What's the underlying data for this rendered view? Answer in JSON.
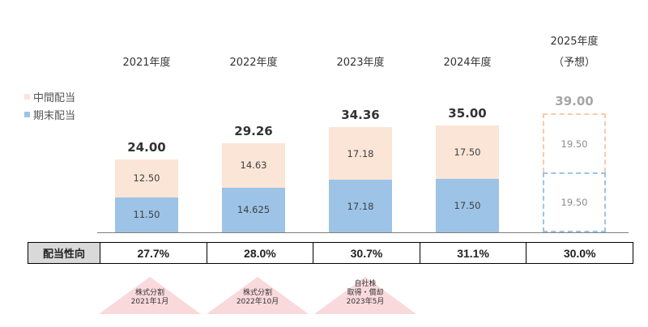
{
  "chart_data": {
    "type": "bar",
    "stacked": true,
    "categories": [
      "2021年度",
      "2022年度",
      "2023年度",
      "2024年度",
      "2025年度"
    ],
    "category_notes": [
      "",
      "",
      "",
      "",
      "（予想）"
    ],
    "series": [
      {
        "name": "期末配当",
        "values": [
          11.5,
          14.625,
          17.18,
          17.5,
          19.5
        ],
        "labels": [
          "11.50",
          "14.625",
          "17.18",
          "17.50",
          "19.50"
        ],
        "color": "#9dc3e6"
      },
      {
        "name": "中間配当",
        "values": [
          12.5,
          14.63,
          17.18,
          17.5,
          19.5
        ],
        "labels": [
          "12.50",
          "14.63",
          "17.18",
          "17.50",
          "19.50"
        ],
        "color": "#fbe5d6"
      }
    ],
    "totals": [
      "24.00",
      "29.26",
      "34.36",
      "35.00",
      "39.00"
    ],
    "forecast_index": 4,
    "ylim": [
      0,
      40
    ],
    "legend": "left",
    "grid": false
  },
  "payout": {
    "label": "配当性向",
    "values": [
      "27.7%",
      "28.0%",
      "30.7%",
      "31.1%",
      "30.0%"
    ]
  },
  "events": [
    {
      "lines": [
        "株式分割",
        "2021年1月"
      ]
    },
    {
      "lines": [
        "株式分割",
        "2022年10月"
      ]
    },
    {
      "lines": [
        "自社株",
        "取得・償却",
        "2023年5月"
      ]
    }
  ],
  "colors": {
    "interim": "#fbe5d6",
    "final": "#9dc3e6",
    "forecast_border_interim": "#f8cbad",
    "forecast_border_final": "#9dc3e6",
    "event_fill": "#f9d9dc"
  }
}
